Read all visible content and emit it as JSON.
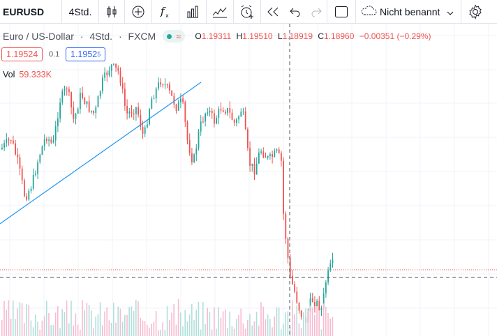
{
  "toolbar": {
    "symbol": "EURUSD",
    "interval": "4Std.",
    "layout_name": "Nicht benannt",
    "icons": [
      "candles-icon",
      "add-indicator-icon",
      "fx-icon",
      "bar-chart-icon",
      "compare-icon",
      "alert-icon",
      "replay-icon",
      "undo-icon",
      "redo-icon",
      "fullscreen-icon",
      "cloud-icon",
      "chevron-down-icon",
      "settings-icon"
    ]
  },
  "legend": {
    "title": "Euro / US-Dollar",
    "sep": "·",
    "interval": "4Std.",
    "source": "FXCM",
    "wave": "≈",
    "ohlc": {
      "o_label": "O",
      "o": "1.19311",
      "h_label": "H",
      "h": "1.19510",
      "l_label": "L",
      "l": "1.18919",
      "c_label": "C",
      "c": "1.18960",
      "change": "−0.00351 (−0.29%)"
    },
    "bid": "1.19524",
    "spread": "0.1",
    "ask_main": "1.1952",
    "ask_sup": "5"
  },
  "volume": {
    "label": "Vol",
    "value": "59.333K"
  },
  "colors": {
    "up": "#26a69a",
    "down": "#ef5350",
    "trendline": "#2196f3",
    "grid": "#f0f3fa"
  }
}
